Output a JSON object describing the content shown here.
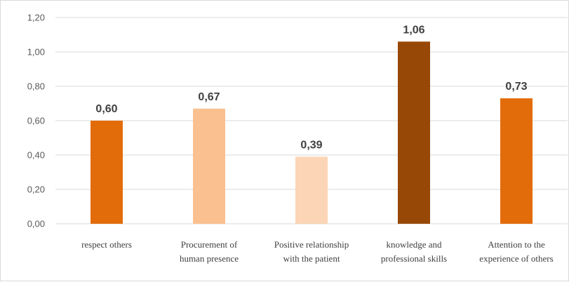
{
  "chart_data": {
    "type": "bar",
    "title": "",
    "xlabel": "",
    "ylabel": "",
    "categories": [
      [
        "respect others"
      ],
      [
        "Procurement of",
        "human presence"
      ],
      [
        "Positive relationship",
        "with the patient"
      ],
      [
        "knowledge and",
        "professional skills"
      ],
      [
        "Attention to the",
        "experience of others"
      ]
    ],
    "values": [
      0.6,
      0.67,
      0.39,
      1.06,
      0.73
    ],
    "data_labels": [
      "0,60",
      "0,67",
      "0,39",
      "1,06",
      "0,73"
    ],
    "bar_colors": [
      "#e36c0a",
      "#fac090",
      "#fbd5b5",
      "#984806",
      "#e36c0a"
    ],
    "ylim": [
      0,
      1.2
    ],
    "y_ticks": [
      0,
      0.2,
      0.4,
      0.6,
      0.8,
      1.0,
      1.2
    ],
    "y_tick_labels": [
      "0,00",
      "0,20",
      "0,40",
      "0,60",
      "0,80",
      "1,00",
      "1,20"
    ],
    "grid": true,
    "legend": "none"
  }
}
